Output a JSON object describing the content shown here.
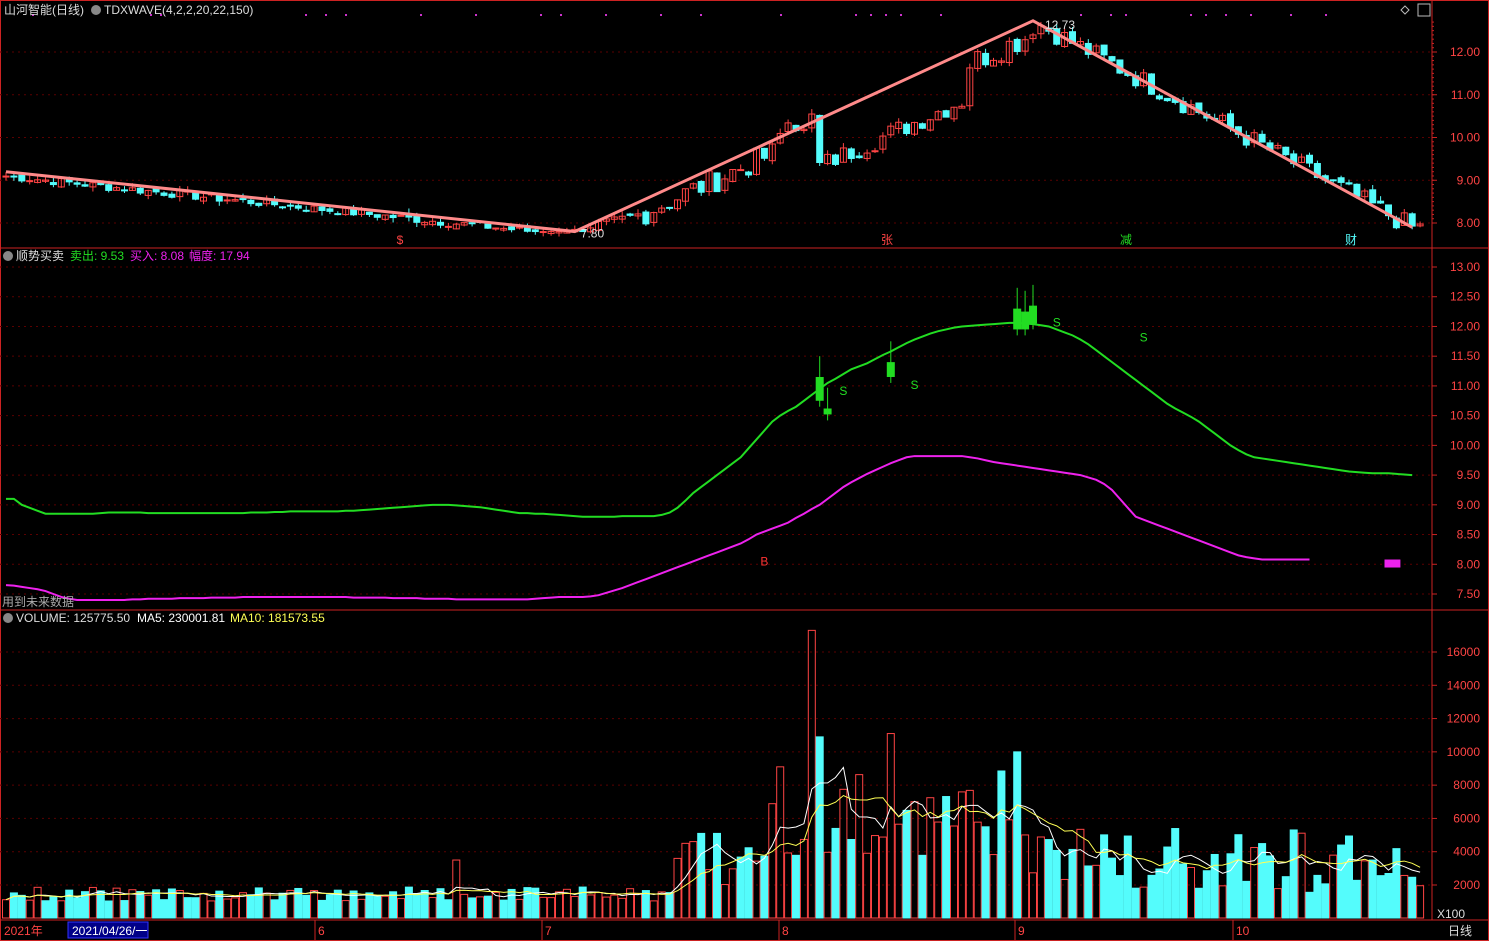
{
  "window": {
    "stock_name": "山河智能(日线)",
    "indicator": "TDXWAVE(4,2,2,20,22,150)"
  },
  "colors": {
    "bg": "#000000",
    "grid": "#5a0000",
    "up": "#ff4444",
    "down": "#54fcfc",
    "wave": "#ff8a8a",
    "sell_line": "#22dd22",
    "buy_line": "#ee22ee",
    "axis": "#cc2222",
    "ma5": "#ffffff",
    "ma10": "#ffff55"
  },
  "price_panel": {
    "yticks": [
      "12.00",
      "11.00",
      "10.00",
      "9.00",
      "8.00"
    ],
    "peak_label": "12.73",
    "trough_label": "7.80",
    "event_markers": [
      {
        "label": "$",
        "color": "#ff4444"
      },
      {
        "label": "张",
        "color": "#ff4444"
      },
      {
        "label": "减",
        "color": "#22dd22"
      },
      {
        "label": "财",
        "color": "#54fcfc"
      }
    ]
  },
  "signal_panel": {
    "name": "顺势买卖",
    "sell_label": "卖出: 9.53",
    "buy_label": "买入: 8.08",
    "range_label": "幅度: 17.94",
    "future_note": "用到未来数据",
    "yticks": [
      "13.00",
      "12.50",
      "12.00",
      "11.50",
      "11.00",
      "10.50",
      "10.00",
      "9.50",
      "9.00",
      "8.50",
      "8.00",
      "7.50"
    ],
    "marks": [
      {
        "label": "S",
        "color": "#22dd22"
      },
      {
        "label": "S",
        "color": "#22dd22"
      },
      {
        "label": "S",
        "color": "#22dd22"
      },
      {
        "label": "S",
        "color": "#22dd22"
      },
      {
        "label": "B",
        "color": "#ff3333"
      }
    ]
  },
  "volume_panel": {
    "name": "VOLUME: 125775.50",
    "ma5_label": "MA5: 230001.81",
    "ma10_label": "MA10: 181573.55",
    "yticks": [
      "16000",
      "14000",
      "12000",
      "10000",
      "8000",
      "6000",
      "4000",
      "2000"
    ],
    "unit": "X100"
  },
  "date_axis": {
    "year": "2021年",
    "cursor_date": "2021/04/26/一",
    "months": [
      "6",
      "7",
      "8",
      "9",
      "10"
    ],
    "period": "日线"
  },
  "chart_data": {
    "type": "candlestick",
    "wave": {
      "x": [
        0,
        72,
        130,
        178
      ],
      "y": [
        9.2,
        7.8,
        12.73,
        7.9
      ]
    },
    "sell_line": [
      9.1,
      9.1,
      9.0,
      8.95,
      8.9,
      8.85,
      8.85,
      8.85,
      8.85,
      8.85,
      8.85,
      8.85,
      8.86,
      8.87,
      8.87,
      8.87,
      8.87,
      8.87,
      8.86,
      8.86,
      8.86,
      8.86,
      8.86,
      8.86,
      8.86,
      8.86,
      8.86,
      8.86,
      8.86,
      8.86,
      8.86,
      8.87,
      8.87,
      8.87,
      8.88,
      8.88,
      8.89,
      8.89,
      8.89,
      8.89,
      8.89,
      8.89,
      8.89,
      8.9,
      8.9,
      8.91,
      8.92,
      8.93,
      8.94,
      8.95,
      8.96,
      8.97,
      8.98,
      8.99,
      9.0,
      9.0,
      9.0,
      8.99,
      8.98,
      8.97,
      8.96,
      8.94,
      8.92,
      8.9,
      8.88,
      8.86,
      8.86,
      8.85,
      8.85,
      8.84,
      8.83,
      8.82,
      8.81,
      8.8,
      8.8,
      8.8,
      8.8,
      8.8,
      8.81,
      8.81,
      8.81,
      8.81,
      8.81,
      8.83,
      8.87,
      8.95,
      9.07,
      9.2,
      9.3,
      9.4,
      9.5,
      9.6,
      9.7,
      9.8,
      9.95,
      10.1,
      10.25,
      10.4,
      10.5,
      10.58,
      10.65,
      10.75,
      10.85,
      10.95,
      11.05,
      11.12,
      11.2,
      11.28,
      11.33,
      11.38,
      11.45,
      11.52,
      11.58,
      11.65,
      11.72,
      11.78,
      11.83,
      11.88,
      11.92,
      11.95,
      11.98,
      12.0,
      12.01,
      12.02,
      12.03,
      12.04,
      12.05,
      12.06,
      12.06,
      12.05,
      12.04,
      12.02,
      12.0,
      11.95,
      11.9,
      11.85,
      11.78,
      11.7,
      11.6,
      11.5,
      11.4,
      11.3,
      11.2,
      11.1,
      11.0,
      10.9,
      10.8,
      10.7,
      10.62,
      10.55,
      10.48,
      10.4,
      10.3,
      10.2,
      10.1,
      10.0,
      9.92,
      9.85,
      9.8,
      9.78,
      9.76,
      9.74,
      9.72,
      9.7,
      9.68,
      9.66,
      9.64,
      9.62,
      9.6,
      9.58,
      9.56,
      9.55,
      9.54,
      9.53,
      9.53,
      9.53,
      9.52,
      9.51,
      9.5
    ],
    "buy_line": [
      7.65,
      7.64,
      7.62,
      7.6,
      7.58,
      7.55,
      7.5,
      7.45,
      7.42,
      7.4,
      7.4,
      7.4,
      7.4,
      7.4,
      7.4,
      7.4,
      7.41,
      7.41,
      7.42,
      7.42,
      7.42,
      7.42,
      7.43,
      7.43,
      7.43,
      7.43,
      7.44,
      7.44,
      7.44,
      7.44,
      7.45,
      7.45,
      7.45,
      7.45,
      7.45,
      7.45,
      7.45,
      7.45,
      7.45,
      7.45,
      7.45,
      7.45,
      7.45,
      7.45,
      7.44,
      7.44,
      7.44,
      7.44,
      7.44,
      7.43,
      7.43,
      7.43,
      7.43,
      7.42,
      7.42,
      7.42,
      7.42,
      7.41,
      7.41,
      7.41,
      7.41,
      7.41,
      7.41,
      7.41,
      7.41,
      7.41,
      7.41,
      7.42,
      7.43,
      7.44,
      7.45,
      7.45,
      7.45,
      7.45,
      7.46,
      7.48,
      7.52,
      7.56,
      7.6,
      7.65,
      7.7,
      7.75,
      7.8,
      7.85,
      7.9,
      7.95,
      8.0,
      8.05,
      8.1,
      8.15,
      8.2,
      8.25,
      8.3,
      8.35,
      8.42,
      8.5,
      8.55,
      8.6,
      8.65,
      8.7,
      8.78,
      8.85,
      8.93,
      9.0,
      9.1,
      9.2,
      9.3,
      9.38,
      9.45,
      9.52,
      9.58,
      9.64,
      9.7,
      9.75,
      9.8,
      9.82,
      9.82,
      9.82,
      9.82,
      9.82,
      9.82,
      9.82,
      9.8,
      9.78,
      9.75,
      9.72,
      9.7,
      9.68,
      9.66,
      9.64,
      9.62,
      9.6,
      9.58,
      9.56,
      9.54,
      9.52,
      9.5,
      9.46,
      9.42,
      9.35,
      9.25,
      9.1,
      8.95,
      8.8,
      8.75,
      8.7,
      8.65,
      8.6,
      8.55,
      8.5,
      8.45,
      8.4,
      8.35,
      8.3,
      8.25,
      8.2,
      8.15,
      8.12,
      8.1,
      8.08,
      8.08,
      8.08,
      8.08,
      8.08,
      8.08,
      8.08
    ]
  }
}
